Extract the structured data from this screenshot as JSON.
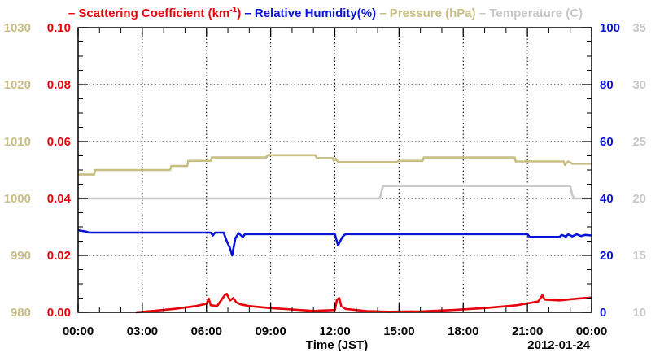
{
  "chart_data": {
    "type": "line",
    "date_label": "2012-01-24",
    "xlabel": "Time (JST)",
    "x_ticks": [
      "00:00",
      "03:00",
      "06:00",
      "09:00",
      "12:00",
      "15:00",
      "18:00",
      "21:00",
      "00:00"
    ],
    "x_hours_range": [
      0,
      24
    ],
    "grid": true,
    "legend_placement": "top",
    "legend": [
      {
        "prefix": "–",
        "text": "Scattering Coefficient (km",
        "sup": "-1",
        "suffix": ")",
        "color": "#e8000b"
      },
      {
        "prefix": "–",
        "text": "Relative Humidity(%)",
        "sup": "",
        "suffix": "",
        "color": "#0a14d8"
      },
      {
        "prefix": "–",
        "text": "Pressure (hPa)",
        "sup": "",
        "suffix": "",
        "color": "#c9bf84"
      },
      {
        "prefix": "–",
        "text": "Temperature (",
        "sup": "",
        "suffix": "C)",
        "color": "#c8c8c8"
      }
    ],
    "axes": {
      "pressure": {
        "color": "#c9bf84",
        "ylim": [
          980,
          1030
        ],
        "ticks": [
          "980",
          "990",
          "1000",
          "1010",
          "1020",
          "1030"
        ]
      },
      "scattering": {
        "color": "#e8000b",
        "ylim": [
          0,
          0.1
        ],
        "ticks": [
          "0.00",
          "0.02",
          "0.04",
          "0.06",
          "0.08",
          "0.10"
        ]
      },
      "humidity": {
        "color": "#0a14d8",
        "ylim": [
          0,
          100
        ],
        "ticks": [
          "0",
          "20",
          "40",
          "60",
          "80",
          "100"
        ]
      },
      "temperature": {
        "color": "#c8c8c8",
        "ylim": [
          10,
          35
        ],
        "ticks": [
          "10",
          "15",
          "20",
          "25",
          "30",
          "35"
        ]
      }
    },
    "series": [
      {
        "name": "Pressure (hPa)",
        "axis": "pressure",
        "color": "#c9bf84",
        "points": [
          [
            0,
            1004.2
          ],
          [
            0.75,
            1004.2
          ],
          [
            0.8,
            1005
          ],
          [
            4.3,
            1005
          ],
          [
            4.35,
            1005.7
          ],
          [
            5.1,
            1005.7
          ],
          [
            5.15,
            1006.6
          ],
          [
            6.2,
            1006.6
          ],
          [
            6.25,
            1007.2
          ],
          [
            8.8,
            1007.2
          ],
          [
            8.85,
            1007.6
          ],
          [
            11.1,
            1007.6
          ],
          [
            11.15,
            1007.1
          ],
          [
            11.9,
            1007.1
          ],
          [
            11.95,
            1006.6
          ],
          [
            12.05,
            1007
          ],
          [
            12.15,
            1006.4
          ],
          [
            14.9,
            1006.4
          ],
          [
            14.95,
            1006.6
          ],
          [
            16.1,
            1006.6
          ],
          [
            16.15,
            1007.2
          ],
          [
            20.4,
            1007.2
          ],
          [
            20.45,
            1006.5
          ],
          [
            22.7,
            1006.5
          ],
          [
            22.75,
            1005.9
          ],
          [
            22.9,
            1006.5
          ],
          [
            23.1,
            1006.1
          ],
          [
            24,
            1006.1
          ]
        ]
      },
      {
        "name": "Temperature (C)",
        "axis": "temperature",
        "color": "#c8c8c8",
        "points": [
          [
            0,
            20
          ],
          [
            14.1,
            20
          ],
          [
            14.25,
            21.1
          ],
          [
            23.0,
            21.1
          ],
          [
            23.1,
            20.3
          ],
          [
            23.2,
            20
          ],
          [
            24,
            20
          ]
        ]
      },
      {
        "name": "Relative Humidity(%)",
        "axis": "humidity",
        "color": "#0a14d8",
        "points": [
          [
            0,
            28.8
          ],
          [
            0.4,
            28.3
          ],
          [
            0.5,
            28
          ],
          [
            6.2,
            28
          ],
          [
            6.3,
            27
          ],
          [
            6.4,
            28
          ],
          [
            6.8,
            28
          ],
          [
            6.95,
            25
          ],
          [
            7.1,
            22.5
          ],
          [
            7.2,
            20
          ],
          [
            7.35,
            26
          ],
          [
            7.5,
            27.8
          ],
          [
            7.7,
            26.5
          ],
          [
            7.8,
            27.5
          ],
          [
            12.0,
            27.5
          ],
          [
            12.15,
            23.5
          ],
          [
            12.35,
            26.5
          ],
          [
            12.5,
            27.5
          ],
          [
            21.0,
            27.5
          ],
          [
            21.1,
            26.5
          ],
          [
            22.5,
            26.5
          ],
          [
            22.6,
            27.2
          ],
          [
            22.8,
            26.6
          ],
          [
            22.9,
            27.4
          ],
          [
            23.1,
            26.7
          ],
          [
            23.3,
            27.4
          ],
          [
            23.5,
            26.8
          ],
          [
            23.7,
            27.2
          ],
          [
            24,
            27.0
          ]
        ]
      },
      {
        "name": "Scattering Coefficient (km-1)",
        "axis": "scattering",
        "color": "#e8000b",
        "points": [
          [
            2.7,
            0.0
          ],
          [
            3.5,
            0.0005
          ],
          [
            4.5,
            0.0012
          ],
          [
            5.5,
            0.0022
          ],
          [
            6.0,
            0.003
          ],
          [
            6.1,
            0.0048
          ],
          [
            6.2,
            0.0025
          ],
          [
            6.5,
            0.0022
          ],
          [
            6.85,
            0.006
          ],
          [
            6.95,
            0.0065
          ],
          [
            7.1,
            0.0042
          ],
          [
            7.25,
            0.005
          ],
          [
            7.4,
            0.0035
          ],
          [
            7.6,
            0.0028
          ],
          [
            8.0,
            0.0022
          ],
          [
            9.0,
            0.0015
          ],
          [
            10.0,
            0.001
          ],
          [
            11.0,
            0.0005
          ],
          [
            12.0,
            0.0008
          ],
          [
            12.1,
            0.0045
          ],
          [
            12.2,
            0.005
          ],
          [
            12.3,
            0.0022
          ],
          [
            12.5,
            0.0012
          ],
          [
            13.5,
            0.0004
          ],
          [
            14.5,
            0.0002
          ],
          [
            16.0,
            0.0003
          ],
          [
            17.5,
            0.0008
          ],
          [
            19.0,
            0.0015
          ],
          [
            20.5,
            0.0025
          ],
          [
            21.5,
            0.0038
          ],
          [
            21.7,
            0.006
          ],
          [
            21.8,
            0.0045
          ],
          [
            22.5,
            0.0042
          ],
          [
            23.3,
            0.0048
          ],
          [
            24.0,
            0.0052
          ]
        ]
      }
    ]
  }
}
